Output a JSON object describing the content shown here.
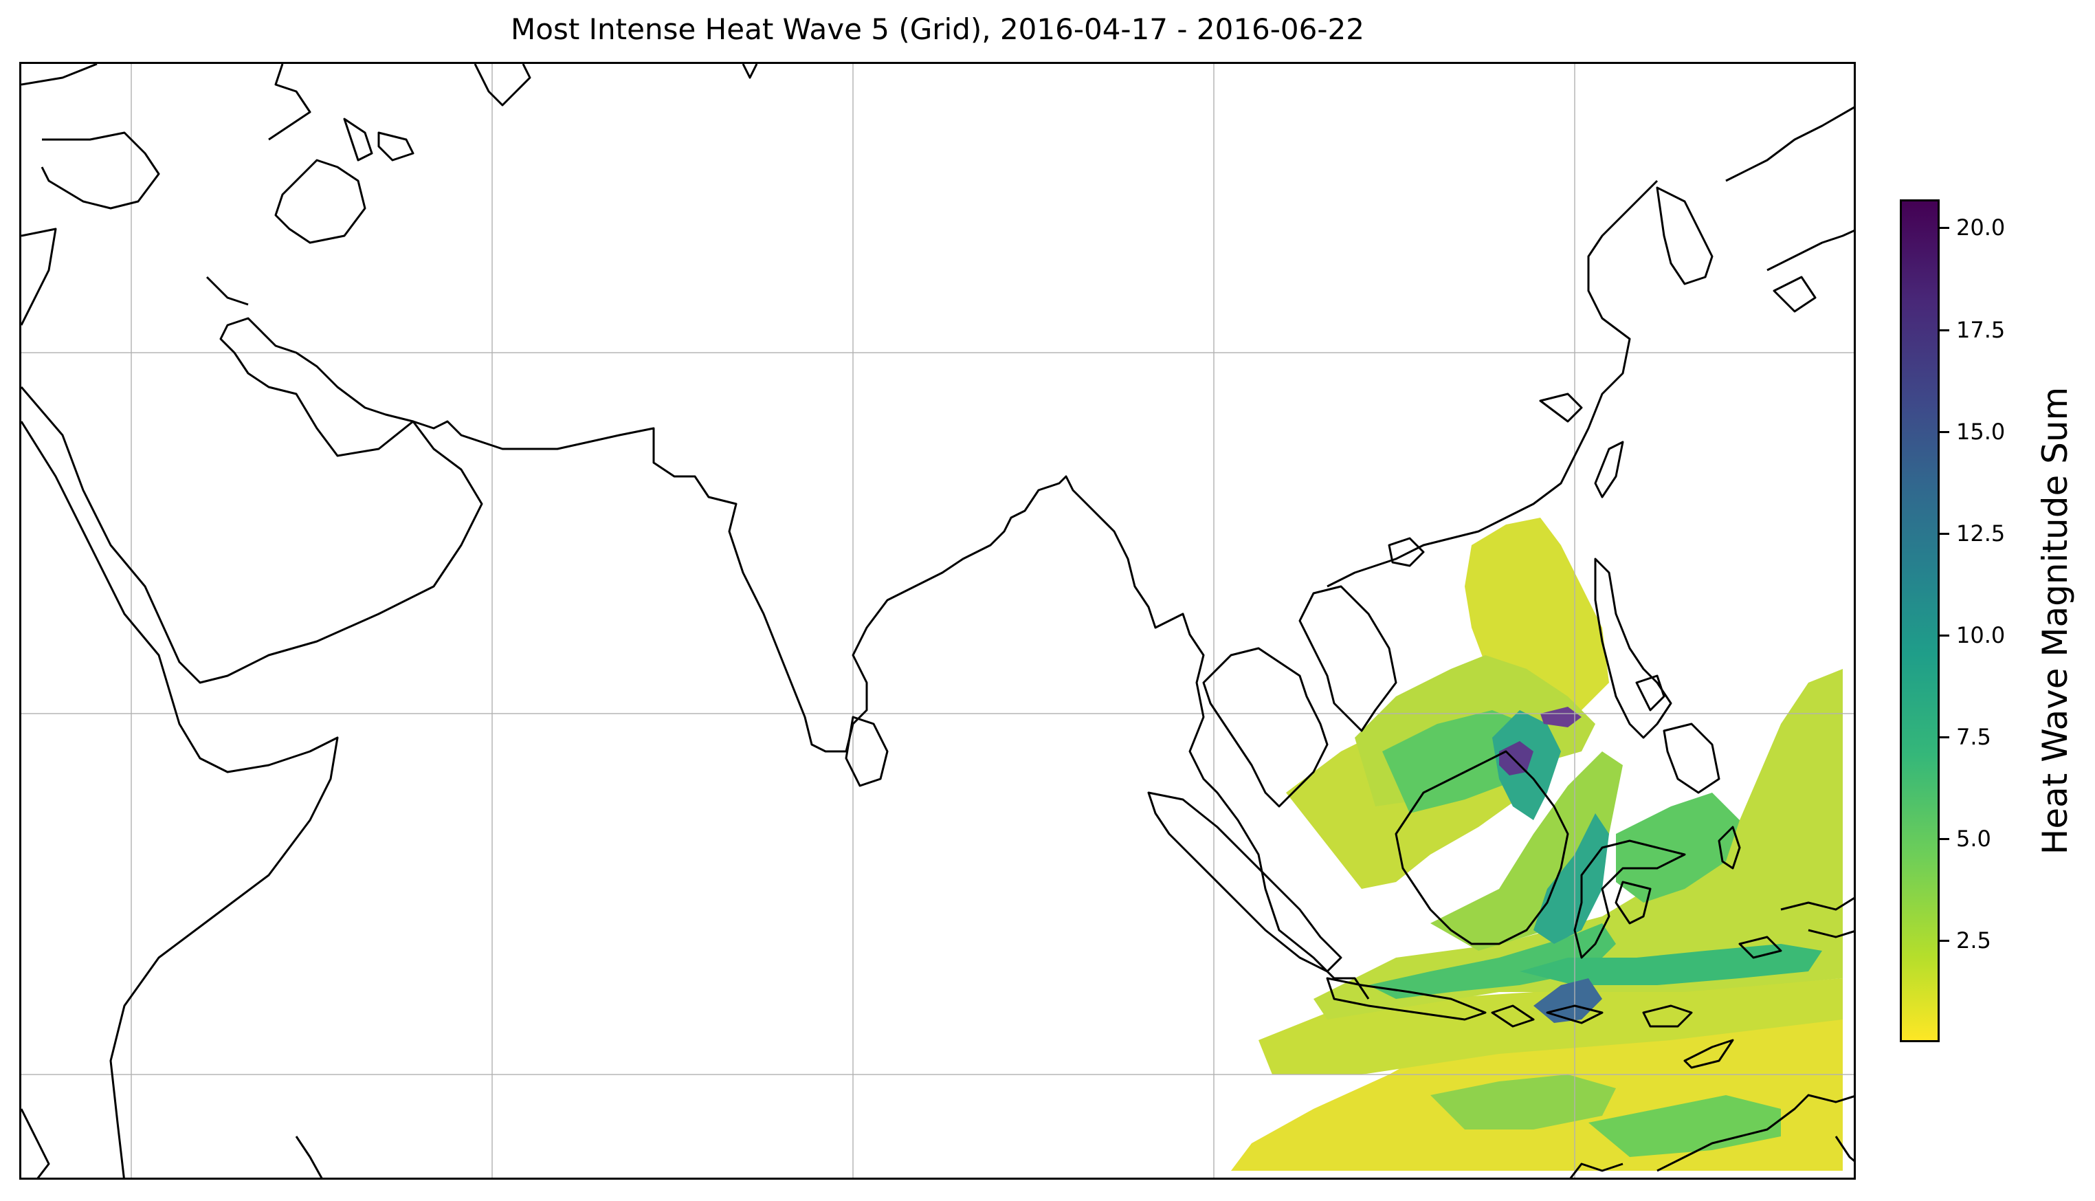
{
  "title": "Most Intense Heat Wave 5 (Grid), 2016-04-17 - 2016-06-22",
  "colorbar": {
    "label": "Heat Wave Magnitude Sum",
    "min": 0,
    "max": 20.7,
    "ticks": [
      {
        "value": 2.5,
        "label": "2.5"
      },
      {
        "value": 5.0,
        "label": "5.0"
      },
      {
        "value": 7.5,
        "label": "7.5"
      },
      {
        "value": 10.0,
        "label": "10.0"
      },
      {
        "value": 12.5,
        "label": "12.5"
      },
      {
        "value": 15.0,
        "label": "15.0"
      },
      {
        "value": 17.5,
        "label": "17.5"
      },
      {
        "value": 20.0,
        "label": "20.0"
      }
    ],
    "colormap": "viridis_r"
  },
  "map": {
    "region": "Indian Ocean / Southeast Asia",
    "gridlines": true,
    "heat_wave_region": "Maritime Southeast Asia, Indonesian seas, northern Australia coast"
  }
}
